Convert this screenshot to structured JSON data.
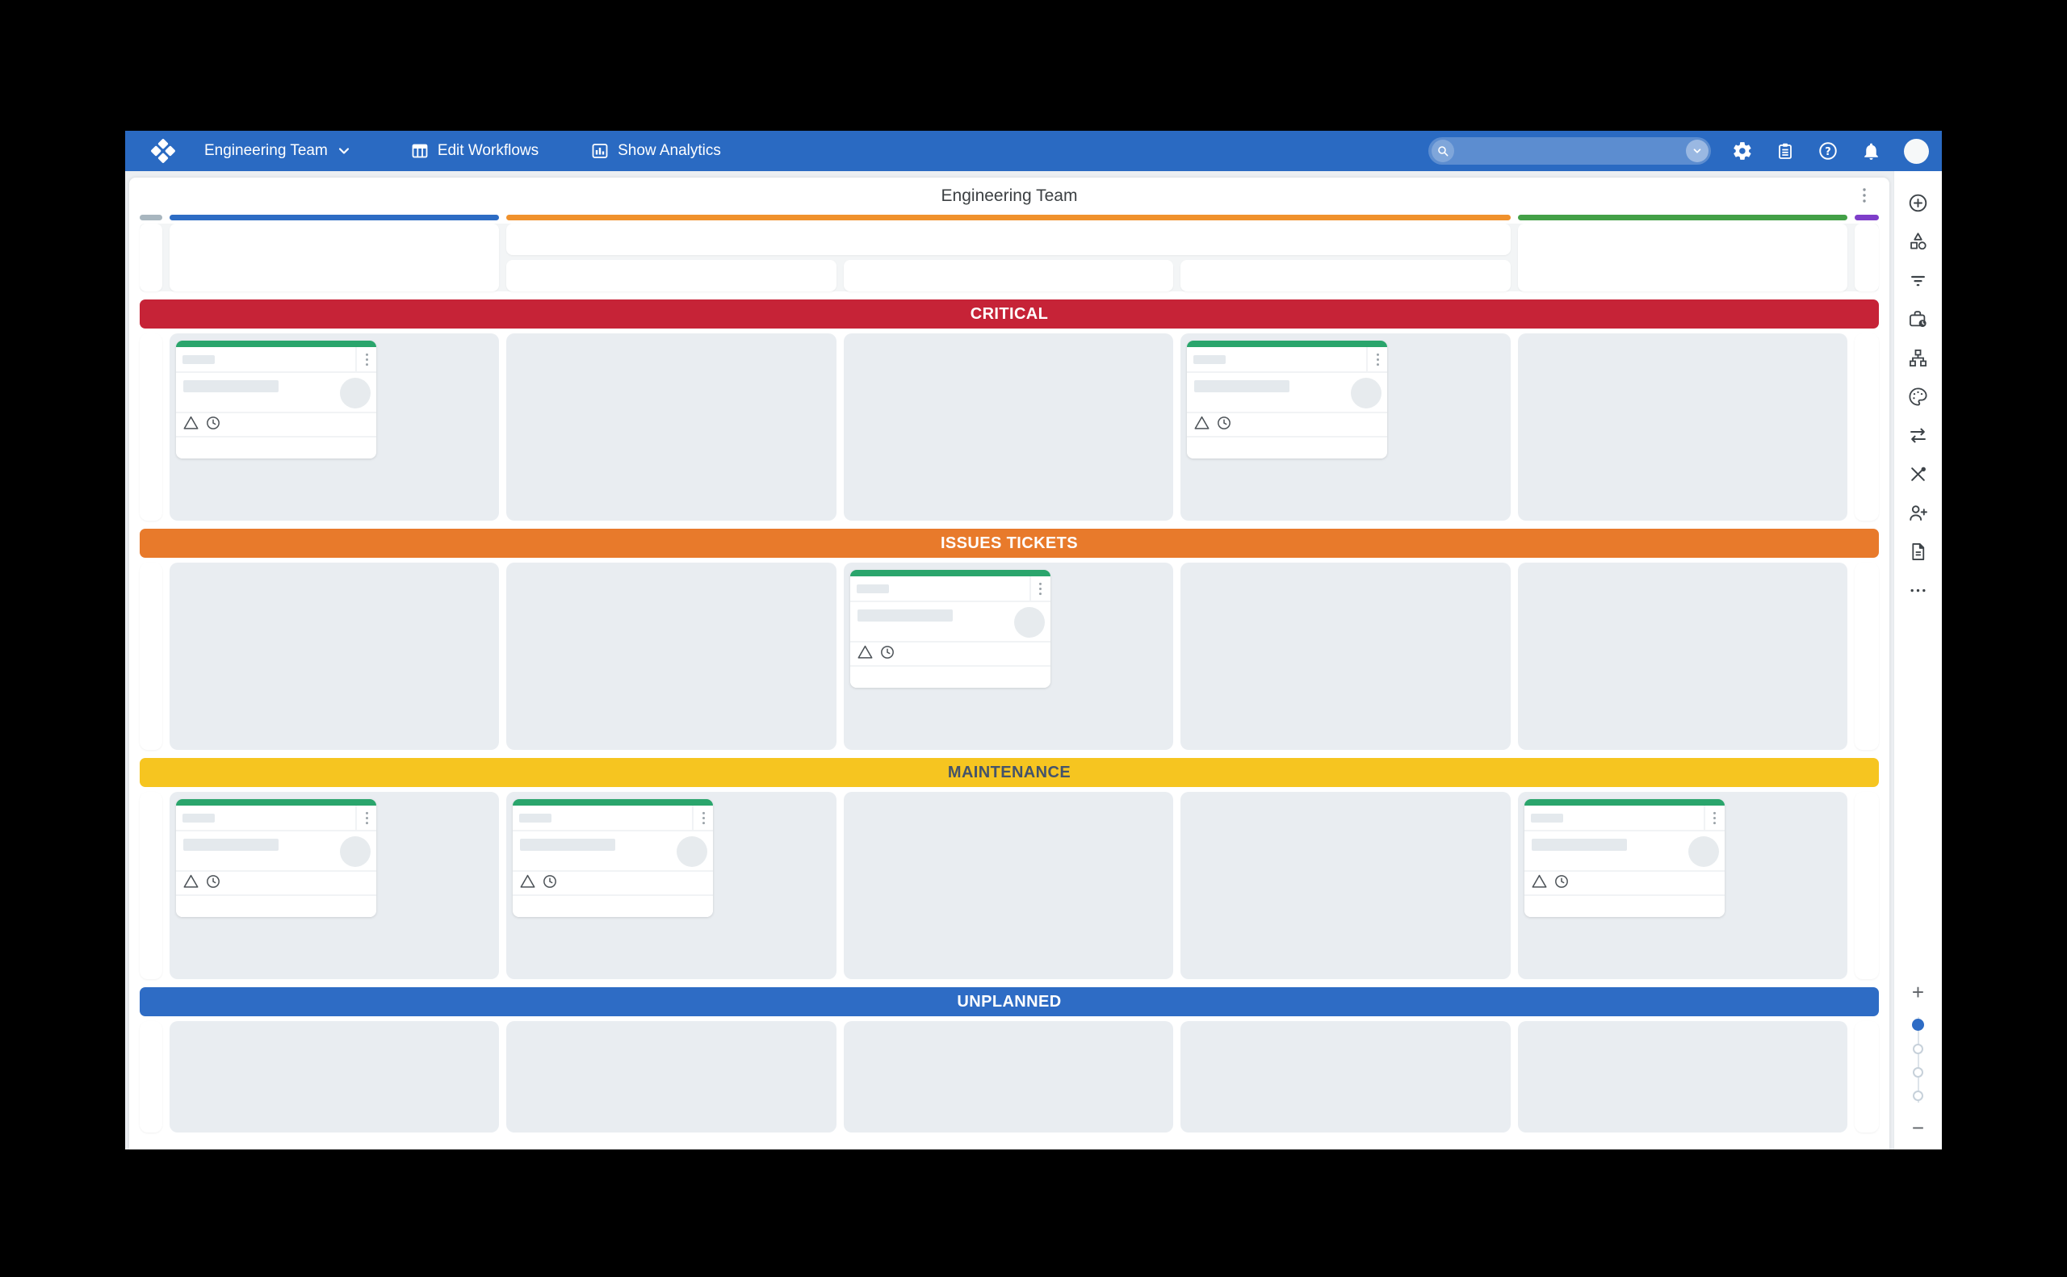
{
  "topbar": {
    "color": "#2a6ac2",
    "team_selector": {
      "label": "Engineering Team"
    },
    "nav": {
      "edit_workflows": "Edit Workflows",
      "show_analytics": "Show Analytics"
    },
    "search": {
      "value": "",
      "placeholder": ""
    }
  },
  "board": {
    "title": "Engineering Team",
    "card_accent": "#2aa56c",
    "header": {
      "rail_left_color": "#a8b6bf",
      "column1_color": "#2d6cc4",
      "group_color": "#f0912c",
      "column5_color": "#43a047",
      "rail_right_color": "#7e3ec9"
    },
    "swimlanes": [
      {
        "label": "CRITICAL",
        "color": "#c62337",
        "text_color": "#ffffff",
        "cards_in_columns": [
          1,
          4
        ]
      },
      {
        "label": "ISSUES TICKETS",
        "color": "#e87a2b",
        "text_color": "#ffffff",
        "cards_in_columns": [
          3
        ]
      },
      {
        "label": "MAINTENANCE",
        "color": "#f6c520",
        "text_color": "#44536a",
        "cards_in_columns": [
          1,
          2,
          5
        ]
      },
      {
        "label": "UNPLANNED",
        "color": "#2e6cc5",
        "text_color": "#ffffff",
        "cards_in_columns": []
      }
    ]
  },
  "sidebar": {
    "tools": [
      "add",
      "shapes",
      "filter",
      "briefcase-clock",
      "hierarchy",
      "palette",
      "swap-arrows",
      "crossed-tools",
      "add-person",
      "document",
      "more"
    ],
    "zoom": {
      "stops": 4,
      "active_stop": 1
    }
  }
}
